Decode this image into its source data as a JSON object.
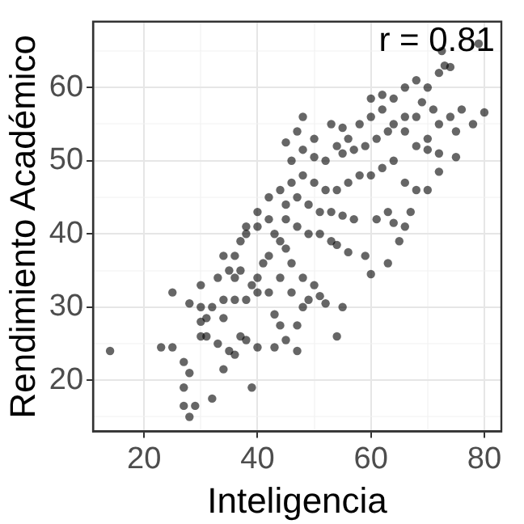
{
  "chart_data": {
    "type": "scatter",
    "xlabel": "Inteligencia",
    "ylabel": "Rendimiento Académico",
    "annotations": [
      "r = 0.81"
    ],
    "xlim": [
      11,
      83
    ],
    "ylim": [
      13,
      69
    ],
    "xticks": [
      20,
      {
        "value": 30,
        "label": null
      },
      40,
      {
        "value": 50,
        "label": null
      },
      60,
      {
        "value": 70,
        "label": null
      },
      80
    ],
    "yticks": [
      {
        "value": 15,
        "label": null
      },
      20,
      {
        "value": 25,
        "label": null
      },
      30,
      {
        "value": 35,
        "label": null
      },
      40,
      {
        "value": 45,
        "label": null
      },
      50,
      {
        "value": 55,
        "label": null
      },
      60,
      {
        "value": 65,
        "label": null
      }
    ],
    "grid": true,
    "marker": "circle",
    "legend": false,
    "series": [
      {
        "color": "#000000",
        "x": [
          14,
          23,
          25,
          27,
          28,
          27,
          27,
          28,
          29,
          32,
          25,
          30,
          31,
          30,
          31,
          33,
          34,
          39,
          28,
          32,
          34,
          35,
          36,
          37,
          38,
          40,
          43,
          45,
          47,
          54,
          55,
          47,
          44,
          43,
          36,
          38,
          40,
          42,
          35,
          33,
          34,
          36,
          37,
          38,
          41,
          42,
          44,
          45,
          46,
          48,
          50,
          51,
          49,
          52,
          40,
          44,
          46,
          48,
          39,
          36,
          34,
          30,
          30,
          37,
          38,
          40,
          42,
          43,
          45,
          47,
          49,
          51,
          53,
          54,
          56,
          59,
          63,
          60,
          45,
          47,
          49,
          51,
          53,
          55,
          57,
          61,
          63,
          65,
          64,
          40,
          42,
          44,
          46,
          48,
          50,
          52,
          54,
          56,
          58,
          60,
          62,
          64,
          46,
          48,
          50,
          52,
          55,
          57,
          59,
          61,
          63,
          66,
          68,
          70,
          72,
          75,
          72,
          70,
          66,
          68,
          67,
          66,
          70,
          72,
          74,
          76,
          75,
          71,
          69,
          68,
          66,
          64,
          62,
          60,
          58,
          56,
          54,
          50,
          47,
          45,
          48,
          53,
          55,
          60,
          62,
          64,
          66,
          68,
          70,
          72,
          73,
          72.5,
          74,
          79,
          78,
          80
        ],
        "values": [
          24,
          24.5,
          24.5,
          22.5,
          21,
          19,
          16.5,
          15,
          16.5,
          17.5,
          32,
          28,
          28.5,
          26,
          26,
          25,
          21.5,
          19,
          30.5,
          30,
          28.5,
          24,
          23.5,
          26,
          25.5,
          24.5,
          24.5,
          25.5,
          24,
          26,
          30,
          27.5,
          27.5,
          29,
          31,
          31,
          32,
          32,
          35,
          34,
          37,
          37,
          39,
          40,
          36,
          37,
          39,
          38,
          36,
          34,
          33,
          31.5,
          31,
          30.5,
          34,
          34,
          32,
          30,
          33,
          34,
          31,
          30,
          33,
          35,
          41,
          41,
          42,
          40,
          42,
          41,
          40,
          40,
          39,
          38.5,
          37.5,
          37,
          36,
          34.5,
          44,
          45,
          44,
          43,
          43,
          42.5,
          42,
          42,
          43,
          39,
          41.5,
          43,
          45,
          46,
          47,
          48,
          47,
          46,
          46,
          47,
          48,
          48,
          49,
          50,
          50,
          51.5,
          50.5,
          50,
          51,
          51.5,
          52,
          53,
          54,
          54,
          52,
          51.5,
          51,
          50.5,
          48.5,
          46,
          47,
          46,
          43,
          41,
          53,
          55,
          56,
          57,
          54,
          57,
          58,
          56,
          56,
          55,
          57,
          56,
          55,
          53,
          52,
          53,
          54,
          52.5,
          56,
          55,
          54.5,
          58.5,
          59,
          58.5,
          60,
          61,
          60,
          62,
          63,
          65,
          62.8,
          66,
          55,
          56.6
        ]
      }
    ]
  }
}
